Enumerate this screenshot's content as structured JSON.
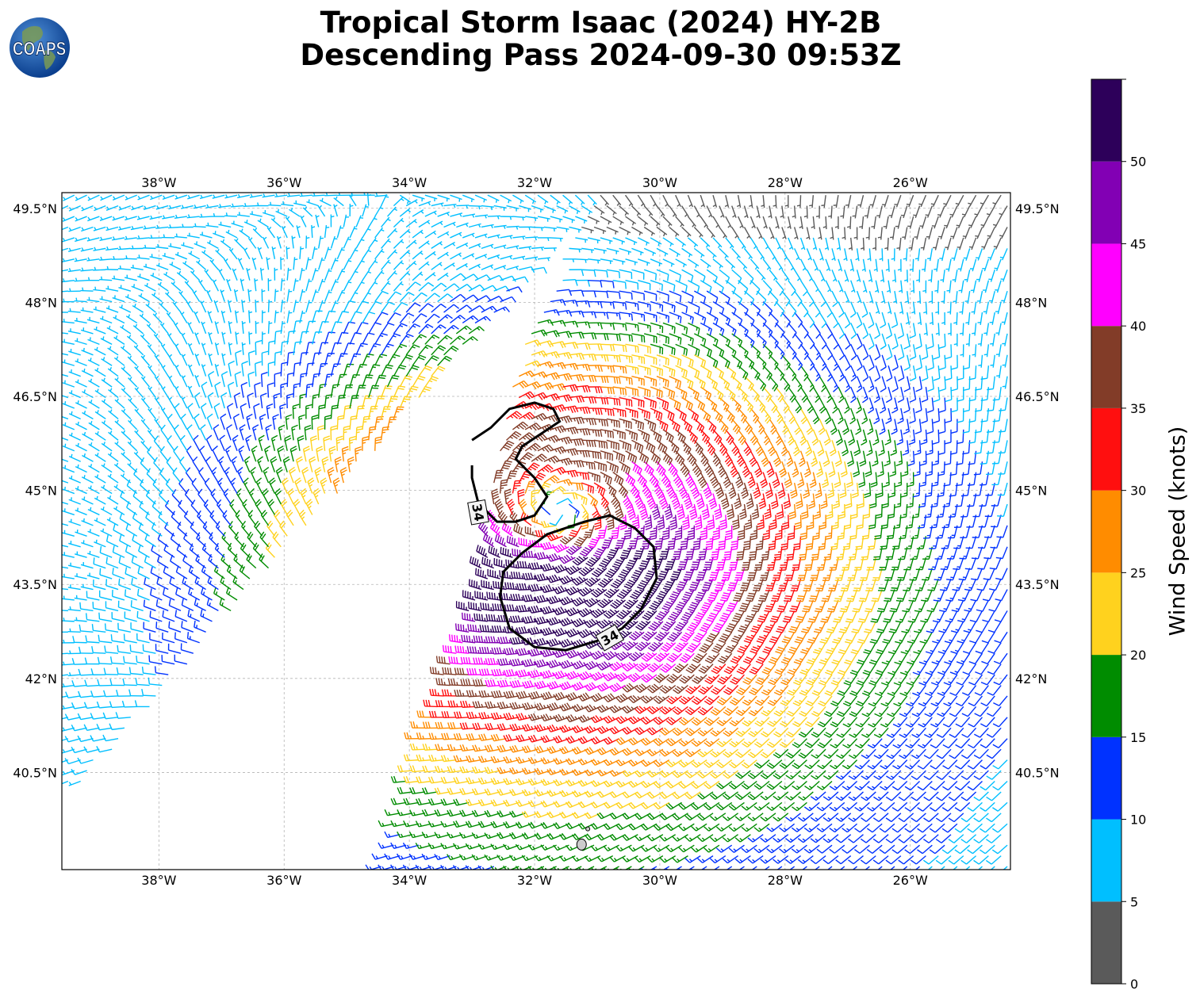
{
  "title_line1": "Tropical Storm Isaac (2024) HY-2B",
  "title_line2": "Descending Pass 2024-09-30 09:53Z",
  "logo_text": "COAPS",
  "map": {
    "lon_min": -39.55,
    "lon_max": -24.4,
    "lat_min": 38.95,
    "lat_max": 49.75,
    "lon_ticks": [
      "38°W",
      "36°W",
      "34°W",
      "32°W",
      "30°W",
      "28°W",
      "26°W"
    ],
    "lon_tick_values": [
      -38,
      -36,
      -34,
      -32,
      -30,
      -28,
      -26
    ],
    "lat_ticks": [
      "49.5°N",
      "48°N",
      "46.5°N",
      "45°N",
      "43.5°N",
      "42°N",
      "40.5°N"
    ],
    "lat_tick_values": [
      49.5,
      48,
      46.5,
      45,
      43.5,
      42,
      40.5
    ],
    "storm_center": {
      "lon": -31.6,
      "lat": 44.6
    },
    "contour_label": "34",
    "contour_labels": [
      {
        "text": "34",
        "lon": -32.9,
        "lat": 44.65,
        "angle": 80
      },
      {
        "text": "34",
        "lon": -30.8,
        "lat": 42.65,
        "angle": -30
      }
    ],
    "contour_north": [
      [
        -33.0,
        45.8
      ],
      [
        -32.7,
        46.0
      ],
      [
        -32.4,
        46.3
      ],
      [
        -32.0,
        46.4
      ],
      [
        -31.7,
        46.3
      ],
      [
        -31.6,
        46.1
      ],
      [
        -31.9,
        45.9
      ],
      [
        -32.2,
        45.7
      ],
      [
        -32.3,
        45.5
      ],
      [
        -32.0,
        45.2
      ],
      [
        -31.8,
        44.9
      ],
      [
        -32.0,
        44.6
      ],
      [
        -32.3,
        44.5
      ],
      [
        -32.6,
        44.5
      ],
      [
        -32.9,
        44.8
      ],
      [
        -33.0,
        45.2
      ],
      [
        -33.0,
        45.4
      ]
    ],
    "contour_south": [
      [
        -31.2,
        44.5
      ],
      [
        -30.8,
        44.6
      ],
      [
        -30.4,
        44.4
      ],
      [
        -30.1,
        44.1
      ],
      [
        -30.05,
        43.6
      ],
      [
        -30.3,
        43.1
      ],
      [
        -30.6,
        42.8
      ],
      [
        -31.0,
        42.6
      ],
      [
        -31.5,
        42.45
      ],
      [
        -32.0,
        42.5
      ],
      [
        -32.4,
        42.8
      ],
      [
        -32.55,
        43.3
      ],
      [
        -32.5,
        43.7
      ],
      [
        -32.2,
        44.0
      ],
      [
        -31.8,
        44.3
      ]
    ],
    "islands": [
      {
        "lon": -31.25,
        "lat": 39.35
      },
      {
        "lon": -31.15,
        "lat": 39.6
      }
    ],
    "swath_left_edge": [
      [
        -39.55,
        40.0
      ],
      [
        -38.6,
        41.0
      ],
      [
        -37.7,
        42.0
      ],
      [
        -36.9,
        43.0
      ],
      [
        -36.0,
        44.0
      ],
      [
        -35.1,
        45.0
      ],
      [
        -34.2,
        46.0
      ],
      [
        -33.4,
        47.0
      ],
      [
        -32.5,
        48.0
      ],
      [
        -31.6,
        49.0
      ],
      [
        -31.0,
        49.75
      ]
    ],
    "swath_right_edge": [
      [
        -34.5,
        38.95
      ],
      [
        -34.2,
        40.0
      ],
      [
        -33.9,
        41.0
      ],
      [
        -33.5,
        42.0
      ],
      [
        -33.1,
        43.0
      ],
      [
        -32.8,
        44.0
      ],
      [
        -32.7,
        45.0
      ],
      [
        -32.5,
        46.0
      ],
      [
        -32.3,
        47.0
      ],
      [
        -31.9,
        48.0
      ],
      [
        -31.4,
        49.0
      ],
      [
        -31.0,
        49.75
      ]
    ]
  },
  "colorbar": {
    "label": "Wind Speed (knots)",
    "ticks": [
      "0",
      "5",
      "10",
      "15",
      "20",
      "25",
      "30",
      "35",
      "40",
      "45",
      "50"
    ],
    "tick_values": [
      0,
      5,
      10,
      15,
      20,
      25,
      30,
      35,
      40,
      45,
      50
    ],
    "max": 55,
    "bins": [
      {
        "lo": 0,
        "hi": 5,
        "color": "#5a5a5a"
      },
      {
        "lo": 5,
        "hi": 10,
        "color": "#00bfff"
      },
      {
        "lo": 10,
        "hi": 15,
        "color": "#0032ff"
      },
      {
        "lo": 15,
        "hi": 20,
        "color": "#008c00"
      },
      {
        "lo": 20,
        "hi": 25,
        "color": "#ffd21e"
      },
      {
        "lo": 25,
        "hi": 30,
        "color": "#ff8c00"
      },
      {
        "lo": 30,
        "hi": 35,
        "color": "#ff0f0f"
      },
      {
        "lo": 35,
        "hi": 40,
        "color": "#823c28"
      },
      {
        "lo": 40,
        "hi": 45,
        "color": "#ff00ff"
      },
      {
        "lo": 45,
        "hi": 50,
        "color": "#8200b4"
      },
      {
        "lo": 50,
        "hi": 55,
        "color": "#2d005a"
      }
    ]
  }
}
